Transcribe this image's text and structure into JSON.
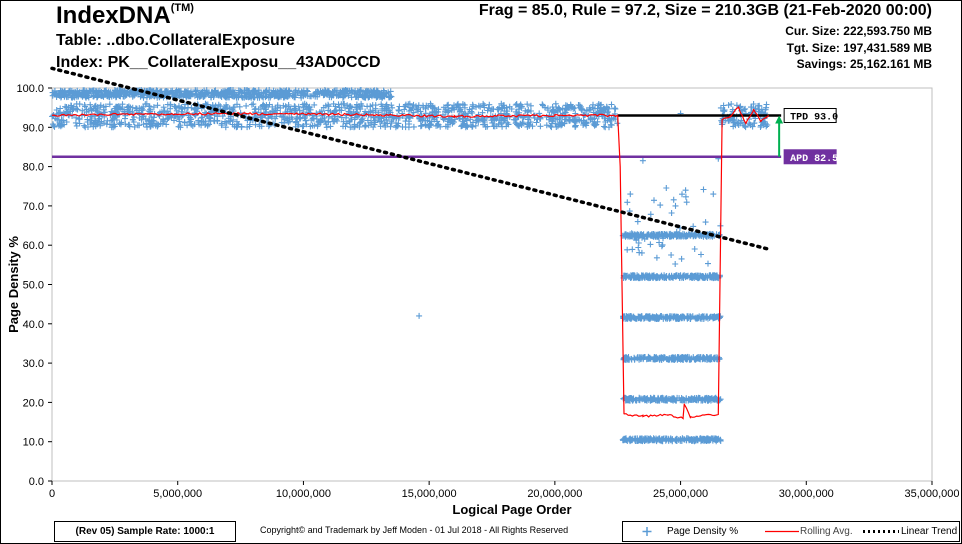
{
  "header": {
    "app_title": "IndexDNA",
    "trademark": "(TM)",
    "table": "Table: ..dbo.CollateralExposure",
    "index": "Index: PK__CollateralExposu__43AD0CCD",
    "stats": "Frag = 85.0, Rule = 97.2, Size = 210.3GB (21-Feb-2020 00:00)",
    "cur_size": "Cur. Size: 222,593.750  MB",
    "tgt_size": "Tgt. Size: 197,431.589  MB",
    "savings": "Savings: 25,162.161  MB"
  },
  "footer": {
    "revision": "(Rev 05) Sample Rate: 1000:1",
    "copyright": "Copyright©  and Trademark by Jeff Moden - 01 Jul 2018 - All Rights Reserved"
  },
  "colors": {
    "points": "#5b9bd5",
    "rolling": "#ff0000",
    "trend": "#000000",
    "tpd": "#000000",
    "apd": "#7030a0",
    "arrow": "#00b050"
  },
  "chart_data": {
    "type": "scatter",
    "xlabel": "Logical Page Order",
    "ylabel": "Page Density %",
    "xlim": [
      0,
      35000000
    ],
    "ylim": [
      0,
      100
    ],
    "x_ticks": [
      "0",
      "5,000,000",
      "10,000,000",
      "15,000,000",
      "20,000,000",
      "25,000,000",
      "30,000,000",
      "35,000,000"
    ],
    "y_ticks": [
      "0.0",
      "10.0",
      "20.0",
      "30.0",
      "40.0",
      "50.0",
      "60.0",
      "70.0",
      "80.0",
      "90.0",
      "100.0"
    ],
    "legend": {
      "position": "bottom-right",
      "entries": [
        "Page Density %",
        "Rolling Avg.",
        "Linear Trend"
      ]
    },
    "series": [
      {
        "name": "Page Density %",
        "kind": "scatter",
        "bands": [
          {
            "x_range": [
              0,
              22500000
            ],
            "y_range": [
              90,
              96
            ]
          },
          {
            "x_range": [
              0,
              13500000
            ],
            "y_range": [
              97.5,
              99.5
            ]
          },
          {
            "x_range": [
              22700000,
              26600000
            ],
            "y_level": 10.5
          },
          {
            "x_range": [
              22700000,
              26600000
            ],
            "y_level": 20.8
          },
          {
            "x_range": [
              22700000,
              26600000
            ],
            "y_level": 31.2
          },
          {
            "x_range": [
              22700000,
              26600000
            ],
            "y_level": 41.6
          },
          {
            "x_range": [
              22700000,
              26600000
            ],
            "y_level": 52
          },
          {
            "x_range": [
              22700000,
              26600000
            ],
            "y_level": 62.5
          },
          {
            "x_range": [
              26600000,
              28500000
            ],
            "y_range": [
              90,
              96
            ]
          }
        ],
        "outliers": [
          {
            "x": 14600000,
            "y": 42
          },
          {
            "x": 7200000,
            "y": 99.5
          },
          {
            "x": 23500000,
            "y": 81.5
          },
          {
            "x": 25000000,
            "y": 93.5
          },
          {
            "x": 23000000,
            "y": 73
          },
          {
            "x": 25200000,
            "y": 74
          },
          {
            "x": 26300000,
            "y": 73
          },
          {
            "x": 24800000,
            "y": 70
          },
          {
            "x": 23300000,
            "y": 66
          },
          {
            "x": 26500000,
            "y": 82
          }
        ]
      },
      {
        "name": "Rolling Avg.",
        "kind": "line",
        "points": [
          {
            "x": 0,
            "y": 93.0
          },
          {
            "x": 3000000,
            "y": 93.3
          },
          {
            "x": 7000000,
            "y": 93.5
          },
          {
            "x": 11000000,
            "y": 93.3
          },
          {
            "x": 16000000,
            "y": 92.8
          },
          {
            "x": 20000000,
            "y": 93.0
          },
          {
            "x": 22500000,
            "y": 93.0
          },
          {
            "x": 22600000,
            "y": 80
          },
          {
            "x": 22750000,
            "y": 17
          },
          {
            "x": 23500000,
            "y": 16.5
          },
          {
            "x": 24500000,
            "y": 16.8
          },
          {
            "x": 25100000,
            "y": 16.0
          },
          {
            "x": 25150000,
            "y": 19.5
          },
          {
            "x": 25400000,
            "y": 16.2
          },
          {
            "x": 26500000,
            "y": 17
          },
          {
            "x": 26650000,
            "y": 92
          },
          {
            "x": 27000000,
            "y": 93
          },
          {
            "x": 27300000,
            "y": 95
          },
          {
            "x": 27600000,
            "y": 91
          },
          {
            "x": 27900000,
            "y": 94.5
          },
          {
            "x": 28200000,
            "y": 91.5
          },
          {
            "x": 28500000,
            "y": 93
          }
        ]
      },
      {
        "name": "Linear Trend",
        "kind": "line",
        "points": [
          {
            "x": 0,
            "y": 105
          },
          {
            "x": 28500000,
            "y": 59
          }
        ]
      }
    ],
    "reference_lines": [
      {
        "label": "TPD 93.0",
        "y": 93.0,
        "x_range": [
          22500000,
          29000000
        ]
      },
      {
        "label": "APD 82.5",
        "y": 82.5,
        "x_range": [
          0,
          29000000
        ]
      }
    ]
  }
}
